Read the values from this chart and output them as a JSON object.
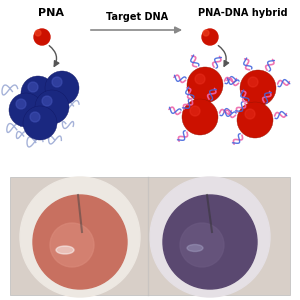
{
  "title_arrow": "Target DNA",
  "label_left": "PNA",
  "label_right": "PNA-DNA hybrid",
  "bg_color": "#ffffff",
  "arrow_color": "#888888",
  "text_color": "#000000",
  "red_ball_color": "#cc1100",
  "blue_ball_color": "#1a2880",
  "dna_pink": "#ee66aa",
  "dna_blue": "#4466dd",
  "pna_strand_color": "#8899cc",
  "photo_outer_bg": "#ddd8d0",
  "photo_left_rim": "#e8e0dc",
  "photo_left_liquid": "#c87060",
  "photo_left_center": "#d98878",
  "photo_right_rim": "#ddd8dc",
  "photo_right_liquid": "#5a4870",
  "photo_right_center": "#6a5880"
}
